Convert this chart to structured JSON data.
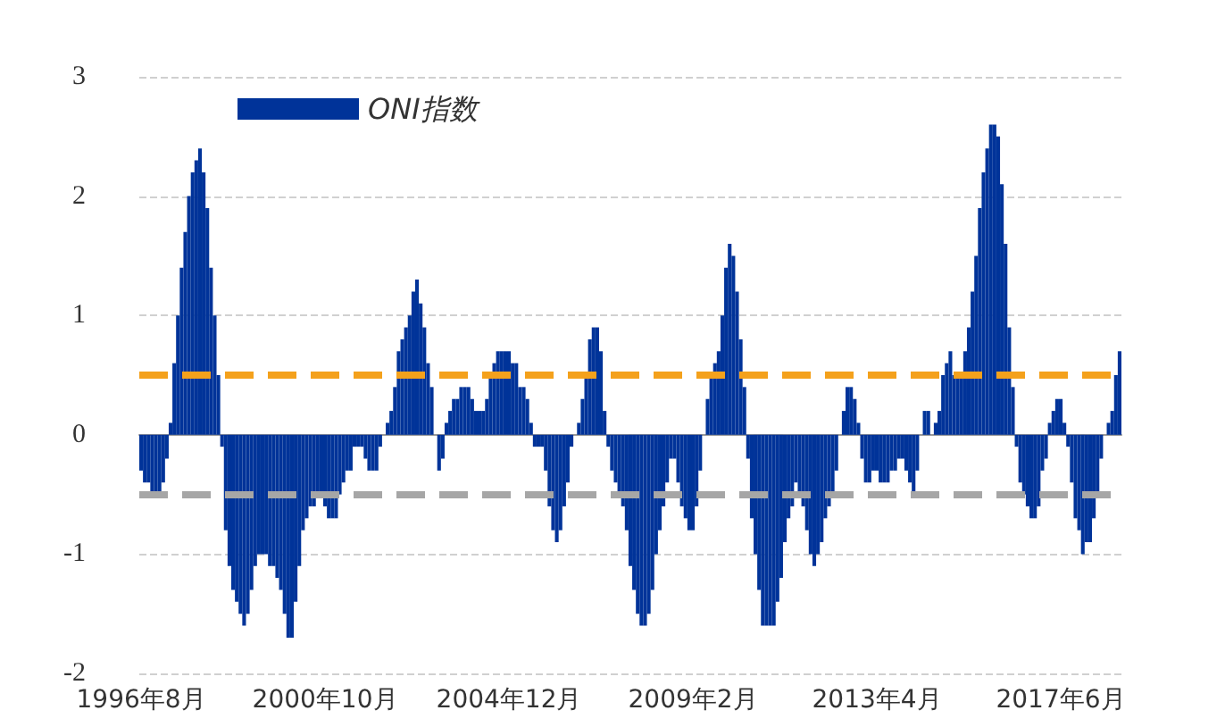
{
  "chart_data": {
    "type": "bar",
    "categories": [
      "1996年8月",
      null,
      null,
      null,
      null,
      null,
      null,
      null,
      null,
      null,
      null,
      null,
      null,
      null,
      null,
      null,
      null,
      null,
      null,
      null,
      null,
      null,
      null,
      null,
      null,
      null,
      null,
      null,
      null,
      null,
      null,
      null,
      null,
      null,
      null,
      null,
      null,
      null,
      null,
      null,
      null,
      null,
      null,
      null,
      null,
      null,
      null,
      null,
      null,
      null,
      "2000年10月",
      null,
      null,
      null,
      null,
      null,
      null,
      null,
      null,
      null,
      null,
      null,
      null,
      null,
      null,
      null,
      null,
      null,
      null,
      null,
      null,
      null,
      null,
      null,
      null,
      null,
      null,
      null,
      null,
      null,
      null,
      null,
      null,
      null,
      null,
      null,
      null,
      null,
      null,
      null,
      null,
      null,
      null,
      null,
      null,
      null,
      null,
      null,
      null,
      null,
      "2004年12月",
      null,
      null,
      null,
      null,
      null,
      null,
      null,
      null,
      null,
      null,
      null,
      null,
      null,
      null,
      null,
      null,
      null,
      null,
      null,
      null,
      null,
      null,
      null,
      null,
      null,
      null,
      null,
      null,
      null,
      null,
      null,
      null,
      null,
      null,
      null,
      null,
      null,
      null,
      null,
      null,
      null,
      null,
      null,
      null,
      null,
      null,
      null,
      null,
      null,
      "2009年2月",
      null,
      null,
      null,
      null,
      null,
      null,
      null,
      null,
      null,
      null,
      null,
      null,
      null,
      null,
      null,
      null,
      null,
      null,
      null,
      null,
      null,
      null,
      null,
      null,
      null,
      null,
      null,
      null,
      null,
      null,
      null,
      null,
      null,
      null,
      null,
      null,
      null,
      null,
      null,
      null,
      null,
      null,
      null,
      null,
      null,
      null,
      null,
      null,
      null,
      "2013年4月",
      null,
      null,
      null,
      null,
      null,
      null,
      null,
      null,
      null,
      null,
      null,
      null,
      null,
      null,
      null,
      null,
      null,
      null,
      null,
      null,
      null,
      null,
      null,
      null,
      null,
      null,
      null,
      null,
      null,
      null,
      null,
      null,
      null,
      null,
      null,
      null,
      null,
      null,
      null,
      null,
      null,
      null,
      null,
      null,
      null,
      null,
      null,
      null,
      null,
      "2017年6月",
      null,
      null,
      null,
      null,
      null,
      null,
      null,
      null,
      null,
      null,
      null,
      null,
      null,
      null,
      null,
      null
    ],
    "series": [
      {
        "name": "ONI指数",
        "color": "#003399",
        "values": [
          -0.3,
          -0.4,
          -0.4,
          -0.5,
          -0.5,
          -0.5,
          -0.4,
          -0.2,
          0.1,
          0.6,
          1.0,
          1.4,
          1.7,
          2.0,
          2.2,
          2.3,
          2.4,
          2.2,
          1.9,
          1.4,
          1.0,
          0.5,
          -0.1,
          -0.8,
          -1.1,
          -1.3,
          -1.4,
          -1.5,
          -1.6,
          -1.5,
          -1.3,
          -1.1,
          -1.0,
          -1.0,
          -1.0,
          -1.1,
          -1.1,
          -1.2,
          -1.3,
          -1.5,
          -1.7,
          -1.7,
          -1.4,
          -1.1,
          -0.8,
          -0.7,
          -0.6,
          -0.6,
          -0.5,
          -0.5,
          -0.6,
          -0.7,
          -0.7,
          -0.7,
          -0.5,
          -0.4,
          -0.3,
          -0.3,
          -0.1,
          -0.1,
          -0.1,
          -0.2,
          -0.3,
          -0.3,
          -0.3,
          -0.1,
          0.0,
          0.1,
          0.2,
          0.4,
          0.7,
          0.8,
          0.9,
          1.0,
          1.2,
          1.3,
          1.1,
          0.9,
          0.6,
          0.4,
          0.0,
          -0.3,
          -0.2,
          0.1,
          0.2,
          0.3,
          0.3,
          0.4,
          0.4,
          0.4,
          0.3,
          0.2,
          0.2,
          0.2,
          0.3,
          0.5,
          0.6,
          0.7,
          0.7,
          0.7,
          0.7,
          0.6,
          0.6,
          0.4,
          0.4,
          0.3,
          0.1,
          -0.1,
          -0.1,
          -0.1,
          -0.3,
          -0.6,
          -0.8,
          -0.9,
          -0.8,
          -0.6,
          -0.4,
          -0.1,
          0.0,
          0.1,
          0.3,
          0.5,
          0.8,
          0.9,
          0.9,
          0.7,
          0.2,
          -0.1,
          -0.3,
          -0.4,
          -0.5,
          -0.6,
          -0.8,
          -1.1,
          -1.3,
          -1.5,
          -1.6,
          -1.6,
          -1.5,
          -1.3,
          -1.0,
          -0.8,
          -0.6,
          -0.4,
          -0.2,
          -0.2,
          -0.4,
          -0.6,
          -0.7,
          -0.8,
          -0.8,
          -0.6,
          -0.3,
          0.0,
          0.3,
          0.5,
          0.6,
          0.7,
          1.0,
          1.4,
          1.6,
          1.5,
          1.2,
          0.8,
          0.4,
          -0.2,
          -0.7,
          -1.0,
          -1.3,
          -1.6,
          -1.6,
          -1.6,
          -1.6,
          -1.4,
          -1.2,
          -0.9,
          -0.7,
          -0.6,
          -0.4,
          -0.5,
          -0.6,
          -0.8,
          -1.0,
          -1.1,
          -1.0,
          -0.9,
          -0.7,
          -0.6,
          -0.5,
          -0.3,
          0.0,
          0.2,
          0.4,
          0.4,
          0.3,
          0.1,
          -0.2,
          -0.4,
          -0.4,
          -0.3,
          -0.3,
          -0.4,
          -0.4,
          -0.4,
          -0.3,
          -0.3,
          -0.2,
          -0.2,
          -0.3,
          -0.4,
          -0.5,
          -0.3,
          0.0,
          0.2,
          0.2,
          0.0,
          0.1,
          0.2,
          0.5,
          0.6,
          0.7,
          0.5,
          0.5,
          0.5,
          0.7,
          0.9,
          1.2,
          1.5,
          1.9,
          2.2,
          2.4,
          2.6,
          2.6,
          2.5,
          2.1,
          1.6,
          0.9,
          0.4,
          -0.1,
          -0.4,
          -0.5,
          -0.6,
          -0.7,
          -0.7,
          -0.6,
          -0.3,
          -0.2,
          0.1,
          0.2,
          0.3,
          0.3,
          0.1,
          -0.1,
          -0.4,
          -0.7,
          -0.8,
          -1.0,
          -0.9,
          -0.9,
          -0.7,
          -0.5,
          -0.2,
          0.0,
          0.1,
          0.2,
          0.5,
          0.7
        ]
      }
    ],
    "ylim": [
      -2,
      3
    ],
    "yticks": [
      -2,
      -1,
      0,
      1,
      2,
      3
    ],
    "grid": "y",
    "legend": "top left",
    "ref_lines": [
      {
        "axis": "y",
        "value": 0.5,
        "color": "#f4a11c",
        "line_style": "dashed"
      },
      {
        "axis": "y",
        "value": -0.5,
        "color": "#a6a6a6",
        "line_style": "dashed"
      }
    ]
  }
}
